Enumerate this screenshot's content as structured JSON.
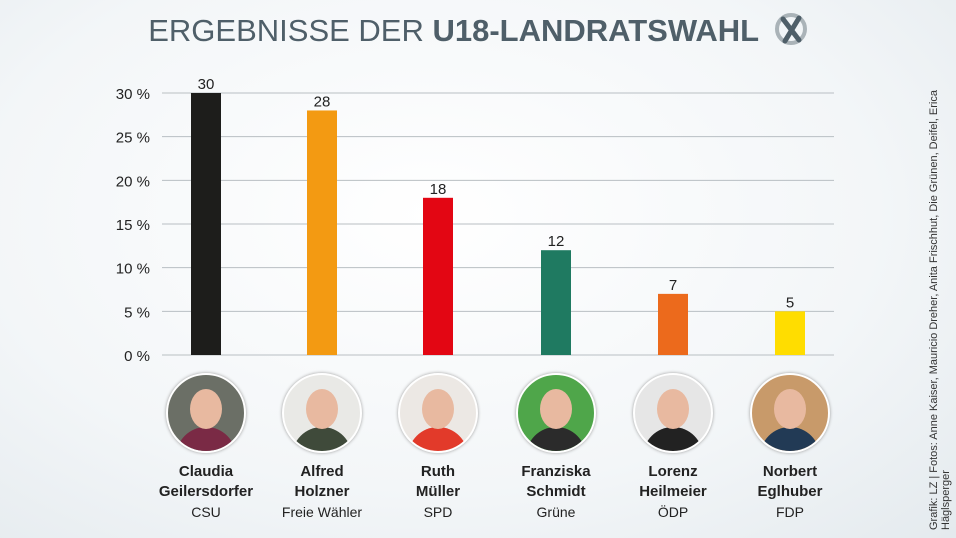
{
  "title": {
    "light": "ERGEBNISSE DER ",
    "bold": "U18-LANDRATSWAHL",
    "icon": "ballot-cross-icon"
  },
  "credit": "Grafik: LZ | Fotos: Anne Kaiser, Mauricio Dreher, Anita Frischhut, Die Grünen, Deifel, Erica Häglsperger",
  "chart_data": {
    "type": "bar",
    "categories": [
      "Claudia Geilersdorfer",
      "Alfred Holzner",
      "Ruth Müller",
      "Franziska Schmidt",
      "Lorenz Heilmeier",
      "Norbert Eglhuber"
    ],
    "values": [
      30,
      28,
      18,
      12,
      7,
      5
    ],
    "data_labels": [
      "30",
      "28",
      "18",
      "12",
      "7",
      "5"
    ],
    "colors": [
      "#1d1d1b",
      "#f39a12",
      "#e30613",
      "#1f7a61",
      "#ec6a1c",
      "#ffdd00"
    ],
    "yticks": [
      "0 %",
      "5 %",
      "10 %",
      "15 %",
      "20 %",
      "25 %",
      "30 %"
    ],
    "ylim": [
      0,
      30
    ],
    "grid": true
  },
  "candidates": [
    {
      "first": "Claudia",
      "last": "Geilersdorfer",
      "party": "CSU",
      "bg": "#6b6f66",
      "shirt": "#7a2a45"
    },
    {
      "first": "Alfred",
      "last": "Holzner",
      "party": "Freie Wähler",
      "bg": "#e9e9e6",
      "shirt": "#3f4a3a"
    },
    {
      "first": "Ruth",
      "last": "Müller",
      "party": "SPD",
      "bg": "#ece8e4",
      "shirt": "#e23a2a"
    },
    {
      "first": "Franziska",
      "last": "Schmidt",
      "party": "Grüne",
      "bg": "#4fa64a",
      "shirt": "#2b2b2b"
    },
    {
      "first": "Lorenz",
      "last": "Heilmeier",
      "party": "ÖDP",
      "bg": "#e6e6e6",
      "shirt": "#222"
    },
    {
      "first": "Norbert",
      "last": "Eglhuber",
      "party": "FDP",
      "bg": "#c89a6a",
      "shirt": "#223a55"
    }
  ]
}
